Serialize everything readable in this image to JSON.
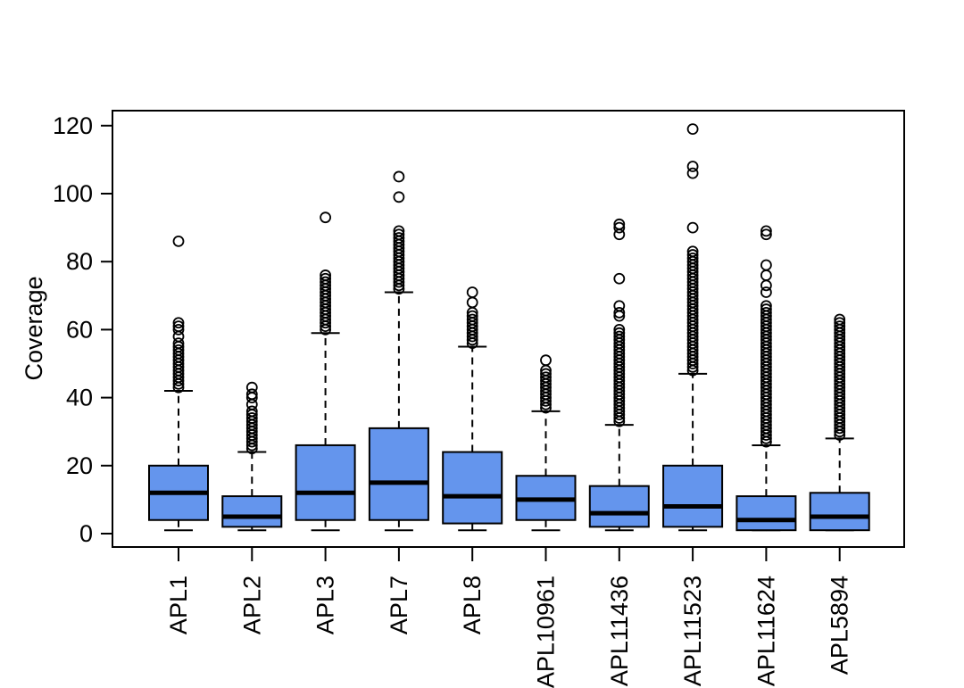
{
  "window": {
    "background": "#ffffff"
  },
  "chart_data": {
    "type": "boxplot",
    "title": "",
    "xlabel": "",
    "ylabel": "Coverage",
    "ylim": [
      0,
      120
    ],
    "yticks": [
      0,
      20,
      40,
      60,
      80,
      100,
      120
    ],
    "grid": "off",
    "legend": "none",
    "box_fill": "#6495ED",
    "box_border": "#000000",
    "median_color": "#000000",
    "axis_color": "#000000",
    "whisker_style": "dashed",
    "outlier_style": "open-circle",
    "categories": [
      "APL1",
      "APL2",
      "APL3",
      "APL7",
      "APL8",
      "APL10961",
      "APL11436",
      "APL11523",
      "APL11624",
      "APL5894"
    ],
    "series": [
      {
        "name": "APL1",
        "whisker_low": 1,
        "q1": 4,
        "median": 12,
        "q3": 20,
        "whisker_high": 42,
        "outliers": [
          43,
          44,
          45,
          46,
          47,
          48,
          49,
          50,
          51,
          52,
          53,
          54,
          55,
          56,
          58,
          60,
          61,
          62,
          86
        ]
      },
      {
        "name": "APL2",
        "whisker_low": 1,
        "q1": 2,
        "median": 5,
        "q3": 11,
        "whisker_high": 24,
        "outliers": [
          25,
          26,
          27,
          28,
          29,
          30,
          31,
          32,
          33,
          34,
          35,
          36,
          38,
          40,
          41,
          43
        ]
      },
      {
        "name": "APL3",
        "whisker_low": 1,
        "q1": 4,
        "median": 12,
        "q3": 26,
        "whisker_high": 59,
        "outliers": [
          60,
          61,
          62,
          63,
          64,
          65,
          66,
          67,
          68,
          69,
          70,
          71,
          72,
          73,
          74,
          75,
          76,
          93
        ]
      },
      {
        "name": "APL7",
        "whisker_low": 1,
        "q1": 4,
        "median": 15,
        "q3": 31,
        "whisker_high": 71,
        "outliers": [
          72,
          73,
          74,
          75,
          76,
          77,
          78,
          79,
          80,
          81,
          82,
          83,
          84,
          85,
          86,
          87,
          88,
          89,
          99,
          105
        ]
      },
      {
        "name": "APL8",
        "whisker_low": 1,
        "q1": 3,
        "median": 11,
        "q3": 24,
        "whisker_high": 55,
        "outliers": [
          56,
          57,
          58,
          59,
          60,
          61,
          62,
          63,
          64,
          65,
          68,
          71
        ]
      },
      {
        "name": "APL10961",
        "whisker_low": 1,
        "q1": 4,
        "median": 10,
        "q3": 17,
        "whisker_high": 36,
        "outliers": [
          37,
          38,
          39,
          40,
          41,
          42,
          43,
          44,
          45,
          46,
          47,
          48,
          51
        ]
      },
      {
        "name": "APL11436",
        "whisker_low": 1,
        "q1": 2,
        "median": 6,
        "q3": 14,
        "whisker_high": 32,
        "outliers": [
          33,
          34,
          35,
          36,
          37,
          38,
          39,
          40,
          41,
          42,
          43,
          44,
          45,
          46,
          47,
          48,
          49,
          50,
          51,
          52,
          53,
          54,
          55,
          56,
          57,
          58,
          59,
          60,
          64,
          65,
          67,
          75,
          88,
          90,
          91
        ]
      },
      {
        "name": "APL11523",
        "whisker_low": 1,
        "q1": 2,
        "median": 8,
        "q3": 20,
        "whisker_high": 47,
        "outliers": [
          48,
          49,
          50,
          51,
          52,
          53,
          54,
          55,
          56,
          57,
          58,
          59,
          60,
          61,
          62,
          63,
          64,
          65,
          66,
          67,
          68,
          69,
          70,
          71,
          72,
          73,
          74,
          75,
          76,
          77,
          78,
          79,
          80,
          81,
          82,
          83,
          90,
          106,
          108,
          119
        ]
      },
      {
        "name": "APL11624",
        "whisker_low": 1,
        "q1": 1,
        "median": 4,
        "q3": 11,
        "whisker_high": 26,
        "outliers": [
          27,
          28,
          29,
          30,
          31,
          32,
          33,
          34,
          35,
          36,
          37,
          38,
          39,
          40,
          41,
          42,
          43,
          44,
          45,
          46,
          47,
          48,
          49,
          50,
          51,
          52,
          53,
          54,
          55,
          56,
          57,
          58,
          59,
          60,
          61,
          62,
          63,
          64,
          65,
          66,
          67,
          71,
          73,
          76,
          79,
          88,
          89
        ]
      },
      {
        "name": "APL5894",
        "whisker_low": 1,
        "q1": 1,
        "median": 5,
        "q3": 12,
        "whisker_high": 28,
        "outliers": [
          29,
          30,
          31,
          32,
          33,
          34,
          35,
          36,
          37,
          38,
          39,
          40,
          41,
          42,
          43,
          44,
          45,
          46,
          47,
          48,
          49,
          50,
          51,
          52,
          53,
          54,
          55,
          56,
          57,
          58,
          59,
          60,
          61,
          62,
          63
        ]
      }
    ]
  }
}
